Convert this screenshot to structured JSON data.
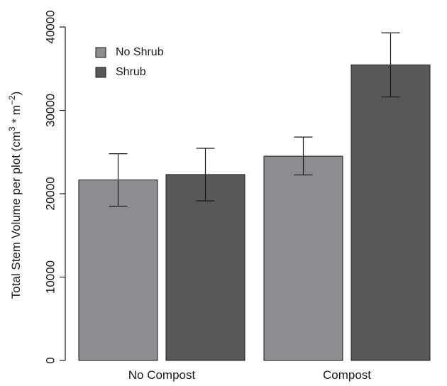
{
  "chart_data": {
    "type": "bar",
    "categories": [
      "No Compost",
      "Compost"
    ],
    "series": [
      {
        "name": "No Shrub",
        "color": "#8c8d90",
        "values": [
          21650,
          24500
        ],
        "error_low": [
          18500,
          22250
        ],
        "error_high": [
          24800,
          26800
        ]
      },
      {
        "name": "Shrub",
        "color": "#58585b",
        "values": [
          22300,
          35450
        ],
        "error_low": [
          19150,
          31600
        ],
        "error_high": [
          25450,
          39300
        ]
      }
    ],
    "ylabel_main": "Total Stem Volume per plot (cm",
    "ylabel_sup1": "3",
    "ylabel_mid": " * m",
    "ylabel_sup2": "−2",
    "ylabel_end": ")",
    "ylim": [
      0,
      40000
    ],
    "yticks": [
      "0",
      "10000",
      "20000",
      "30000",
      "40000"
    ],
    "ytick_values": [
      0,
      10000,
      20000,
      30000,
      40000
    ],
    "legend_position": "top-left",
    "grid": false
  }
}
